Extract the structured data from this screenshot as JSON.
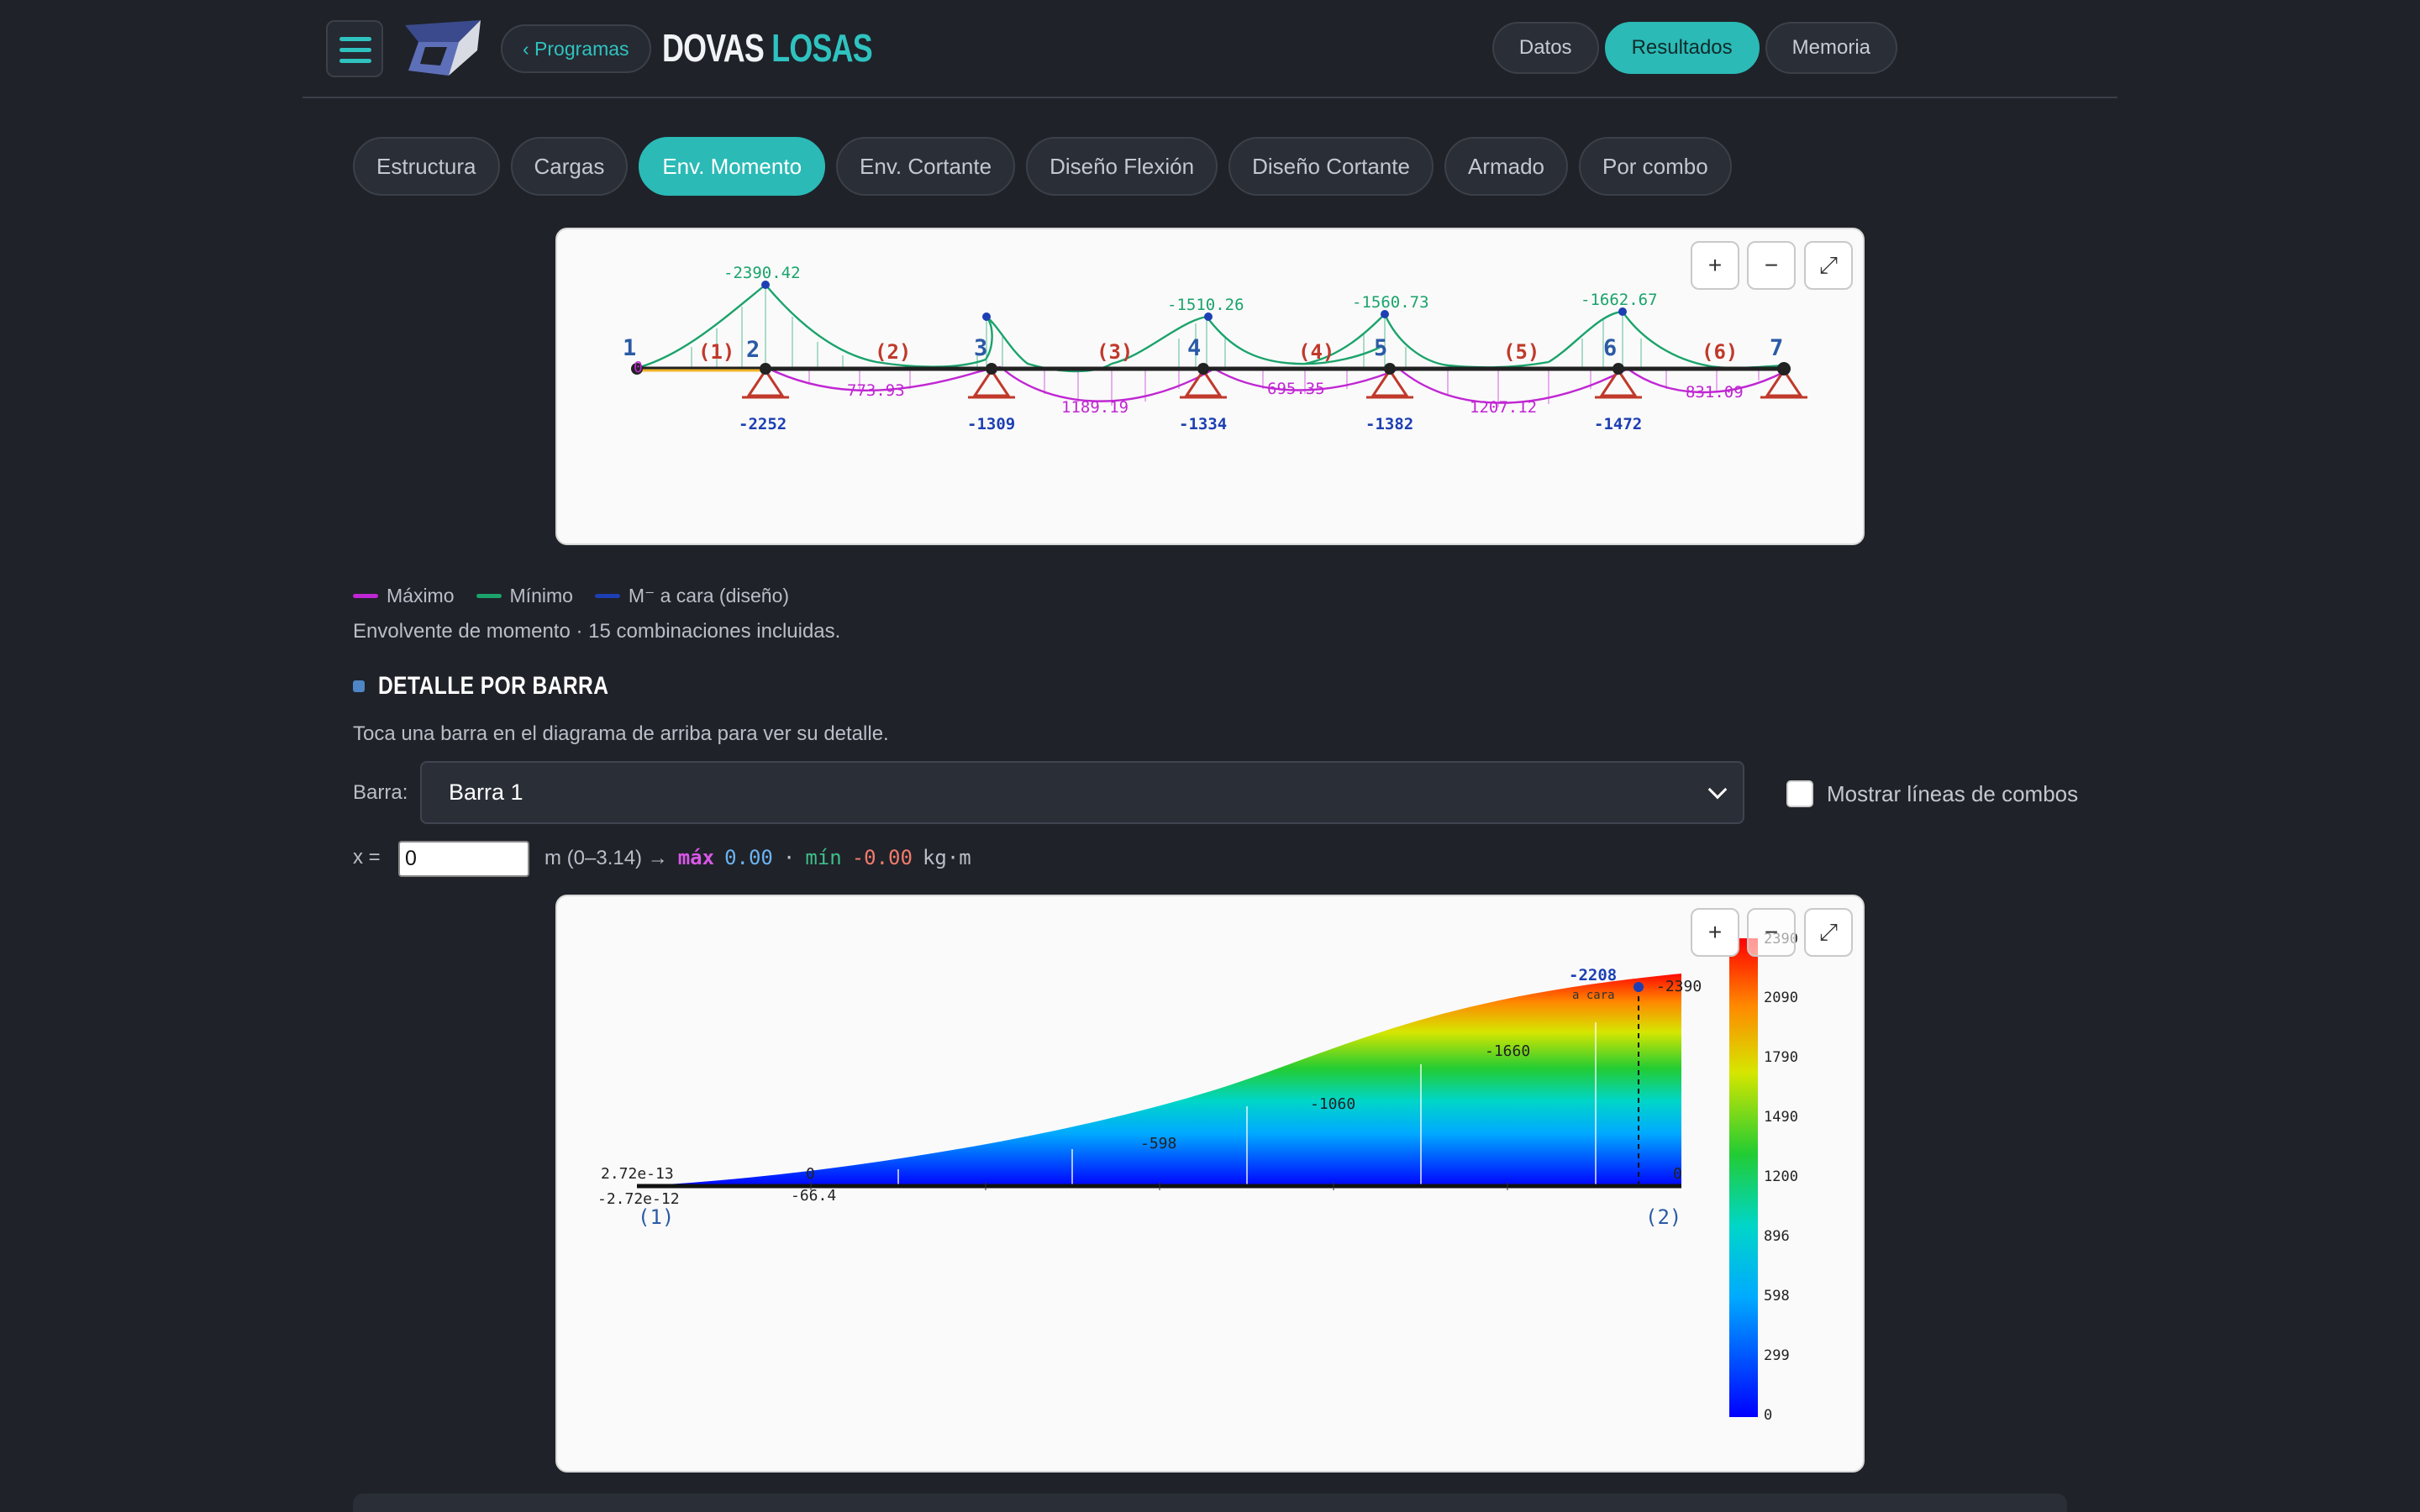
{
  "header": {
    "back_label": "‹ Programas",
    "brand_part1": "DOVAS",
    "brand_part2": "LOSAS",
    "nav": [
      "Datos",
      "Resultados",
      "Memoria"
    ],
    "nav_active": "Resultados"
  },
  "tabs": [
    "Estructura",
    "Cargas",
    "Env. Momento",
    "Env. Cortante",
    "Diseño Flexión",
    "Diseño Cortante",
    "Armado",
    "Por combo"
  ],
  "active_tab": "Env. Momento",
  "zoom": {
    "in": "+",
    "out": "−",
    "fit": "⤢"
  },
  "legend": [
    {
      "label": "Máximo",
      "color": "#c026d3"
    },
    {
      "label": "Mínimo",
      "color": "#1aa36b"
    },
    {
      "label": "M⁻ a cara (diseño)",
      "color": "#1d3fb3"
    }
  ],
  "envelope_note": "Envolvente de momento · 15 combinaciones incluidas.",
  "detail": {
    "title": "DETALLE POR BARRA",
    "hint": "Toca una barra en el diagrama de arriba para ver su detalle.",
    "barra_label": "Barra:",
    "barra_selected": "Barra 1",
    "show_combos_label": "Mostrar líneas de combos",
    "x_label": "x =",
    "x_value": "0",
    "x_range": "m (0–3.14) →",
    "max_label": "máx",
    "max_value": "0.00",
    "sep": "·",
    "min_label": "mín",
    "min_value": "-0.00",
    "unit": "kg·m"
  },
  "chart_data": [
    {
      "type": "line",
      "nodes": [
        "1",
        "2",
        "3",
        "4",
        "5",
        "6",
        "7"
      ],
      "bars": [
        "(1)",
        "(2)",
        "(3)",
        "(4)",
        "(5)",
        "(6)"
      ],
      "node_x_m": [
        0,
        3.14,
        8.89,
        14.3,
        19.0,
        24.8,
        29.0
      ],
      "series": [
        {
          "name": "Máximo",
          "values_per_bar": [
            0,
            773.93,
            1189.19,
            695.35,
            1207.12,
            831.09
          ]
        },
        {
          "name": "Mínimo",
          "values_per_support": [
            -2390.42,
            -1320,
            -1510.26,
            -1560.73,
            -1662.67
          ]
        },
        {
          "name": "M⁻ a cara (diseño)",
          "values_per_support": [
            -2252,
            -1309,
            -1334,
            -1382,
            -1472
          ]
        }
      ],
      "labels": {
        "min_peaks": [
          "-2390.42",
          "-1510.26",
          "-1560.73",
          "-1662.67"
        ],
        "max_spans": [
          "773.93",
          "1189.19",
          "695.35",
          "1207.12",
          "831.09"
        ],
        "design": [
          "-2252",
          "-1309",
          "-1334",
          "-1382",
          "-1472"
        ],
        "zero_marker": "0"
      }
    },
    {
      "type": "area",
      "title": "",
      "x_range_m": [
        0,
        3.14
      ],
      "x": [
        0,
        0.52,
        1.05,
        1.57,
        2.09,
        2.62,
        2.96,
        3.14
      ],
      "y": [
        0,
        -66.4,
        -190,
        -598,
        -1060,
        -1660,
        -2208,
        -2390
      ],
      "point_labels": {
        "start_top": "2.72e-13",
        "start_bottom": "-2.72e-12",
        "p1_top": "0",
        "p1_bottom": "-66.4",
        "p3": "-598",
        "p4": "-1060",
        "p5": "-1660",
        "end": "-2390",
        "end_zero": "0",
        "face_value": "-2208",
        "face_label": "a cara"
      },
      "end_labels": [
        "(1)",
        "(2)"
      ],
      "colorbar_ticks": [
        "2390",
        "2090",
        "1790",
        "1490",
        "1200",
        "896",
        "598",
        "299",
        "0"
      ],
      "colorbar_range": [
        0,
        2390
      ]
    }
  ]
}
